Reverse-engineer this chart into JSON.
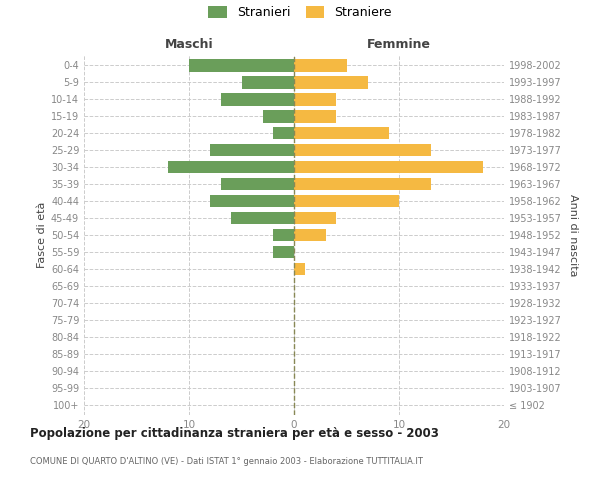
{
  "age_groups": [
    "100+",
    "95-99",
    "90-94",
    "85-89",
    "80-84",
    "75-79",
    "70-74",
    "65-69",
    "60-64",
    "55-59",
    "50-54",
    "45-49",
    "40-44",
    "35-39",
    "30-34",
    "25-29",
    "20-24",
    "15-19",
    "10-14",
    "5-9",
    "0-4"
  ],
  "birth_years": [
    "≤ 1902",
    "1903-1907",
    "1908-1912",
    "1913-1917",
    "1918-1922",
    "1923-1927",
    "1928-1932",
    "1933-1937",
    "1938-1942",
    "1943-1947",
    "1948-1952",
    "1953-1957",
    "1958-1962",
    "1963-1967",
    "1968-1972",
    "1973-1977",
    "1978-1982",
    "1983-1987",
    "1988-1992",
    "1993-1997",
    "1998-2002"
  ],
  "males": [
    0,
    0,
    0,
    0,
    0,
    0,
    0,
    0,
    0,
    2,
    2,
    6,
    8,
    7,
    12,
    8,
    2,
    3,
    7,
    5,
    10
  ],
  "females": [
    0,
    0,
    0,
    0,
    0,
    0,
    0,
    0,
    1,
    0,
    3,
    4,
    10,
    13,
    18,
    13,
    9,
    4,
    4,
    7,
    5
  ],
  "male_color": "#6a9e5a",
  "female_color": "#f5b942",
  "male_label": "Stranieri",
  "female_label": "Straniere",
  "title": "Popolazione per cittadinanza straniera per età e sesso - 2003",
  "subtitle": "COMUNE DI QUARTO D'ALTINO (VE) - Dati ISTAT 1° gennaio 2003 - Elaborazione TUTTITALIA.IT",
  "header_left": "Maschi",
  "header_right": "Femmine",
  "ylabel_left": "Fasce di età",
  "ylabel_right": "Anni di nascita",
  "xlim": 20,
  "background_color": "#ffffff",
  "grid_color": "#cccccc",
  "bar_height": 0.75,
  "tick_color": "#888888",
  "label_color": "#444444",
  "center_line_color": "#888855"
}
